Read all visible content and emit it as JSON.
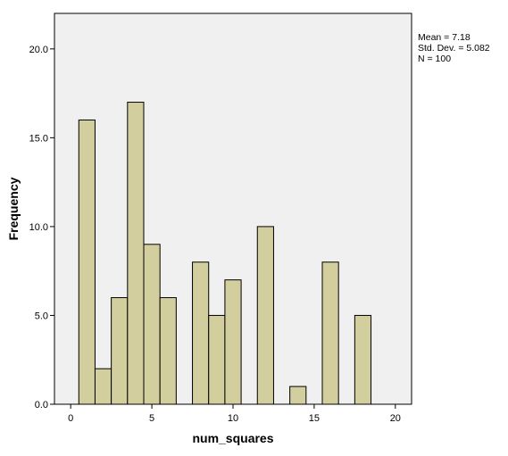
{
  "chart_data": {
    "type": "bar",
    "x": [
      1,
      2,
      3,
      4,
      5,
      6,
      8,
      9,
      10,
      12,
      14,
      16,
      18
    ],
    "values": [
      16,
      2,
      6,
      17,
      9,
      6,
      8,
      5,
      7,
      10,
      1,
      8,
      5
    ],
    "bin_width": 1,
    "xlabel": "num_squares",
    "ylabel": "Frequency",
    "xlim": [
      -1,
      21
    ],
    "ylim": [
      0,
      22
    ],
    "x_ticks": [
      0,
      5,
      10,
      15,
      20
    ],
    "x_tick_labels": [
      "0",
      "5",
      "10",
      "15",
      "20"
    ],
    "y_ticks": [
      0,
      5,
      10,
      15,
      20
    ],
    "y_tick_labels": [
      "0.0",
      "5.0",
      "10.0",
      "15.0",
      "20.0"
    ],
    "grid": false,
    "stats": {
      "mean": "Mean = 7.18",
      "std_dev": "Std. Dev. = 5.082",
      "n": "N = 100"
    },
    "colors": {
      "bar_fill": "#d3ce9e",
      "bar_stroke": "#000000",
      "plot_background": "#f0f0f0"
    }
  }
}
